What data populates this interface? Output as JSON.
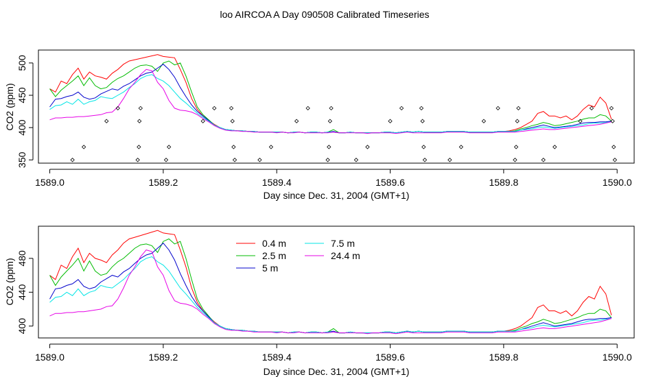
{
  "title": "loo AIRCOA A  Day 090508  Calibrated Timeseries",
  "series_colors": {
    "0.4 m": "#ff0000",
    "2.5 m": "#00bb00",
    "5 m": "#0000cc",
    "7.5 m": "#00e5e5",
    "24.4 m": "#e600e6"
  },
  "chart_data": [
    {
      "type": "line",
      "xlabel": "Day since Dec. 31, 2004 (GMT+1)",
      "ylabel": "CO2 (ppm)",
      "xlim": [
        1588.98,
        1590.03
      ],
      "ylim": [
        345,
        520
      ],
      "x_ticks": [
        1589.0,
        1589.2,
        1589.4,
        1589.6,
        1589.8,
        1590.0
      ],
      "x_tick_labels": [
        "1589.0",
        "1589.2",
        "1589.4",
        "1589.6",
        "1589.8",
        "1590.0"
      ],
      "y_ticks": [
        350,
        400,
        450,
        500
      ],
      "y_tick_labels": [
        "350",
        "400",
        "450",
        "500"
      ],
      "legend": false,
      "x": [
        1589.0,
        1589.01,
        1589.02,
        1589.03,
        1589.04,
        1589.05,
        1589.06,
        1589.07,
        1589.08,
        1589.09,
        1589.1,
        1589.11,
        1589.12,
        1589.13,
        1589.14,
        1589.15,
        1589.16,
        1589.17,
        1589.18,
        1589.19,
        1589.2,
        1589.21,
        1589.22,
        1589.23,
        1589.24,
        1589.25,
        1589.26,
        1589.27,
        1589.28,
        1589.29,
        1589.3,
        1589.31,
        1589.32,
        1589.33,
        1589.34,
        1589.35,
        1589.36,
        1589.37,
        1589.38,
        1589.39,
        1589.4,
        1589.41,
        1589.42,
        1589.43,
        1589.44,
        1589.45,
        1589.46,
        1589.47,
        1589.48,
        1589.49,
        1589.5,
        1589.51,
        1589.52,
        1589.53,
        1589.54,
        1589.55,
        1589.56,
        1589.57,
        1589.58,
        1589.59,
        1589.6,
        1589.61,
        1589.62,
        1589.63,
        1589.64,
        1589.65,
        1589.66,
        1589.67,
        1589.68,
        1589.69,
        1589.7,
        1589.71,
        1589.72,
        1589.73,
        1589.74,
        1589.75,
        1589.76,
        1589.77,
        1589.78,
        1589.79,
        1589.8,
        1589.81,
        1589.82,
        1589.83,
        1589.84,
        1589.85,
        1589.86,
        1589.87,
        1589.88,
        1589.89,
        1589.9,
        1589.91,
        1589.92,
        1589.93,
        1589.94,
        1589.95,
        1589.96,
        1589.97,
        1589.98,
        1589.99
      ],
      "series": [
        {
          "name": "0.4 m",
          "color": "#ff0000",
          "values": [
            460,
            455,
            472,
            468,
            482,
            492,
            475,
            486,
            480,
            478,
            475,
            484,
            490,
            498,
            503,
            505,
            507,
            509,
            511,
            513,
            510,
            509,
            508,
            490,
            470,
            445,
            428,
            418,
            411,
            405,
            400,
            397,
            396,
            395,
            395,
            394,
            394,
            393,
            393,
            393,
            393,
            393,
            392,
            393,
            393,
            392,
            393,
            393,
            392,
            393,
            393,
            392,
            392,
            393,
            392,
            392,
            392,
            392,
            392,
            393,
            393,
            392,
            393,
            394,
            393,
            394,
            393,
            393,
            393,
            393,
            394,
            394,
            394,
            394,
            393,
            393,
            393,
            393,
            393,
            394,
            394,
            395,
            397,
            400,
            405,
            410,
            422,
            425,
            418,
            418,
            415,
            418,
            412,
            418,
            428,
            435,
            432,
            447,
            438,
            413
          ]
        },
        {
          "name": "2.5 m",
          "color": "#00bb00",
          "values": [
            460,
            448,
            458,
            465,
            472,
            480,
            465,
            477,
            465,
            460,
            462,
            470,
            476,
            480,
            486,
            492,
            496,
            497,
            495,
            487,
            500,
            503,
            497,
            500,
            480,
            455,
            432,
            420,
            412,
            404,
            400,
            397,
            396,
            395,
            395,
            394,
            394,
            393,
            393,
            393,
            393,
            393,
            392,
            393,
            393,
            392,
            393,
            393,
            392,
            393,
            397,
            392,
            392,
            393,
            392,
            392,
            392,
            392,
            392,
            393,
            393,
            392,
            393,
            394,
            393,
            394,
            393,
            393,
            393,
            393,
            394,
            394,
            394,
            394,
            393,
            393,
            393,
            393,
            393,
            394,
            394,
            394,
            395,
            398,
            400,
            403,
            405,
            408,
            406,
            403,
            404,
            406,
            408,
            410,
            413,
            415,
            415,
            420,
            418,
            410
          ]
        },
        {
          "name": "5 m",
          "color": "#0000cc",
          "values": [
            432,
            444,
            445,
            448,
            450,
            455,
            447,
            444,
            446,
            452,
            456,
            460,
            458,
            464,
            468,
            474,
            480,
            484,
            486,
            492,
            498,
            490,
            478,
            462,
            448,
            435,
            425,
            418,
            411,
            404,
            400,
            397,
            396,
            395,
            395,
            394,
            394,
            393,
            393,
            393,
            393,
            393,
            392,
            393,
            393,
            392,
            393,
            393,
            392,
            393,
            394,
            392,
            392,
            393,
            392,
            392,
            392,
            392,
            392,
            393,
            393,
            392,
            393,
            394,
            393,
            394,
            393,
            393,
            393,
            393,
            394,
            394,
            394,
            394,
            393,
            393,
            393,
            393,
            393,
            394,
            394,
            394,
            394,
            396,
            398,
            400,
            402,
            404,
            402,
            400,
            401,
            402,
            403,
            405,
            407,
            408,
            408,
            409,
            409,
            410
          ]
        },
        {
          "name": "7.5 m",
          "color": "#00e5e5",
          "values": [
            428,
            434,
            435,
            440,
            436,
            444,
            436,
            440,
            442,
            448,
            446,
            445,
            450,
            455,
            462,
            468,
            476,
            480,
            482,
            476,
            472,
            465,
            455,
            445,
            438,
            430,
            422,
            416,
            410,
            404,
            400,
            397,
            396,
            395,
            395,
            394,
            394,
            393,
            393,
            393,
            393,
            393,
            392,
            393,
            393,
            392,
            393,
            393,
            392,
            393,
            393,
            392,
            392,
            393,
            392,
            392,
            392,
            392,
            392,
            393,
            393,
            392,
            393,
            394,
            393,
            394,
            393,
            393,
            393,
            393,
            394,
            394,
            394,
            394,
            393,
            393,
            393,
            393,
            393,
            394,
            394,
            394,
            394,
            396,
            397,
            398,
            400,
            401,
            400,
            399,
            400,
            401,
            402,
            403,
            404,
            406,
            407,
            407,
            408,
            409
          ]
        },
        {
          "name": "24.4 m",
          "color": "#e600e6",
          "values": [
            412,
            415,
            415,
            416,
            416,
            417,
            417,
            418,
            419,
            420,
            423,
            424,
            432,
            445,
            460,
            470,
            482,
            490,
            488,
            470,
            460,
            442,
            430,
            427,
            426,
            424,
            420,
            414,
            409,
            403,
            399,
            396,
            395,
            395,
            394,
            394,
            393,
            393,
            393,
            393,
            392,
            393,
            392,
            392,
            393,
            392,
            392,
            392,
            392,
            392,
            393,
            392,
            392,
            392,
            392,
            392,
            391,
            392,
            392,
            392,
            392,
            391,
            392,
            393,
            392,
            392,
            392,
            392,
            392,
            392,
            393,
            393,
            393,
            393,
            392,
            392,
            392,
            392,
            392,
            393,
            393,
            393,
            393,
            394,
            395,
            396,
            397,
            398,
            397,
            397,
            398,
            399,
            400,
            401,
            402,
            403,
            404,
            405,
            407,
            409
          ]
        }
      ],
      "markers": {
        "style": "open-diamond",
        "points": [
          [
            1589.04,
            350
          ],
          [
            1589.06,
            370
          ],
          [
            1589.1,
            410
          ],
          [
            1589.12,
            430
          ],
          [
            1589.155,
            350
          ],
          [
            1589.157,
            370
          ],
          [
            1589.158,
            410
          ],
          [
            1589.16,
            430
          ],
          [
            1589.205,
            350
          ],
          [
            1589.21,
            370
          ],
          [
            1589.27,
            410
          ],
          [
            1589.29,
            430
          ],
          [
            1589.32,
            430
          ],
          [
            1589.322,
            410
          ],
          [
            1589.324,
            370
          ],
          [
            1589.326,
            350
          ],
          [
            1589.37,
            350
          ],
          [
            1589.39,
            370
          ],
          [
            1589.435,
            410
          ],
          [
            1589.455,
            430
          ],
          [
            1589.49,
            350
          ],
          [
            1589.492,
            370
          ],
          [
            1589.494,
            410
          ],
          [
            1589.496,
            430
          ],
          [
            1589.54,
            350
          ],
          [
            1589.56,
            370
          ],
          [
            1589.6,
            410
          ],
          [
            1589.62,
            430
          ],
          [
            1589.655,
            430
          ],
          [
            1589.657,
            410
          ],
          [
            1589.659,
            370
          ],
          [
            1589.661,
            350
          ],
          [
            1589.705,
            350
          ],
          [
            1589.725,
            370
          ],
          [
            1589.765,
            410
          ],
          [
            1589.79,
            430
          ],
          [
            1589.82,
            350
          ],
          [
            1589.822,
            370
          ],
          [
            1589.824,
            410
          ],
          [
            1589.826,
            430
          ],
          [
            1589.87,
            350
          ],
          [
            1589.89,
            370
          ],
          [
            1589.935,
            410
          ],
          [
            1589.955,
            430
          ],
          [
            1589.99,
            430
          ],
          [
            1589.992,
            410
          ],
          [
            1589.994,
            370
          ],
          [
            1589.996,
            350
          ]
        ]
      }
    },
    {
      "type": "line",
      "xlabel": "Day since Dec. 31, 2004 (GMT+1)",
      "ylabel": "CO2 (ppm)",
      "xlim": [
        1588.98,
        1590.03
      ],
      "ylim": [
        386,
        518
      ],
      "x_ticks": [
        1589.0,
        1589.2,
        1589.4,
        1589.6,
        1589.8,
        1590.0
      ],
      "x_tick_labels": [
        "1589.0",
        "1589.2",
        "1589.4",
        "1589.6",
        "1589.8",
        "1590.0"
      ],
      "y_ticks": [
        400,
        440,
        480
      ],
      "y_tick_labels": [
        "400",
        "440",
        "480"
      ],
      "legend": true,
      "legend_position": "top-center",
      "legend_entries": [
        "0.4 m",
        "2.5 m",
        "5 m",
        "7.5 m",
        "24.4 m"
      ],
      "same_series_as_panel": 0
    }
  ]
}
